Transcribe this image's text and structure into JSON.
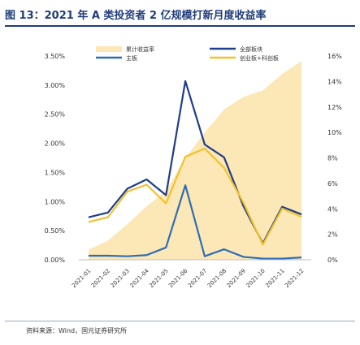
{
  "header": {
    "title": "图 13：2021 年 A 类投资者 2 亿规模打新月度收益率"
  },
  "source": "资料来源：Wind，国元证券研究所",
  "chart_data": {
    "type": "line",
    "categories": [
      "2021-01",
      "2021-02",
      "2021-03",
      "2021-04",
      "2021-05",
      "2021-06",
      "2021-07",
      "2021-08",
      "2021-09",
      "2021-10",
      "2021-11",
      "2021-12"
    ],
    "series": [
      {
        "name": "累计收益率",
        "type": "area",
        "axis": "right",
        "color": "#fce8b6",
        "values": [
          0.8,
          1.5,
          2.8,
          4.2,
          5.4,
          8.0,
          10.0,
          11.8,
          12.8,
          13.3,
          14.6,
          15.6
        ]
      },
      {
        "name": "全部板块",
        "type": "line",
        "axis": "left",
        "color": "#1f3d8c",
        "values": [
          0.73,
          0.81,
          1.22,
          1.38,
          1.11,
          3.07,
          1.98,
          1.76,
          0.92,
          0.28,
          0.91,
          0.78
        ]
      },
      {
        "name": "主板",
        "type": "line",
        "axis": "left",
        "color": "#2e6db4",
        "values": [
          0.07,
          0.07,
          0.06,
          0.08,
          0.21,
          1.28,
          0.06,
          0.18,
          0.05,
          0.02,
          0.02,
          0.04
        ]
      },
      {
        "name": "创业板+科创板",
        "type": "line",
        "axis": "left",
        "color": "#f2c12e",
        "values": [
          0.65,
          0.73,
          1.17,
          1.29,
          0.97,
          1.77,
          1.91,
          1.58,
          0.98,
          0.26,
          0.88,
          0.74
        ]
      }
    ],
    "y_left": {
      "ylim": [
        0,
        3.5
      ],
      "ticks": [
        "0.00%",
        "0.50%",
        "1.00%",
        "1.50%",
        "2.00%",
        "2.50%",
        "3.00%",
        "3.50%"
      ]
    },
    "y_right": {
      "ylim": [
        0,
        16
      ],
      "ticks": [
        "0%",
        "2%",
        "4%",
        "6%",
        "8%",
        "10%",
        "12%",
        "14%",
        "16%"
      ]
    },
    "legend_position": "top",
    "grid": false
  }
}
